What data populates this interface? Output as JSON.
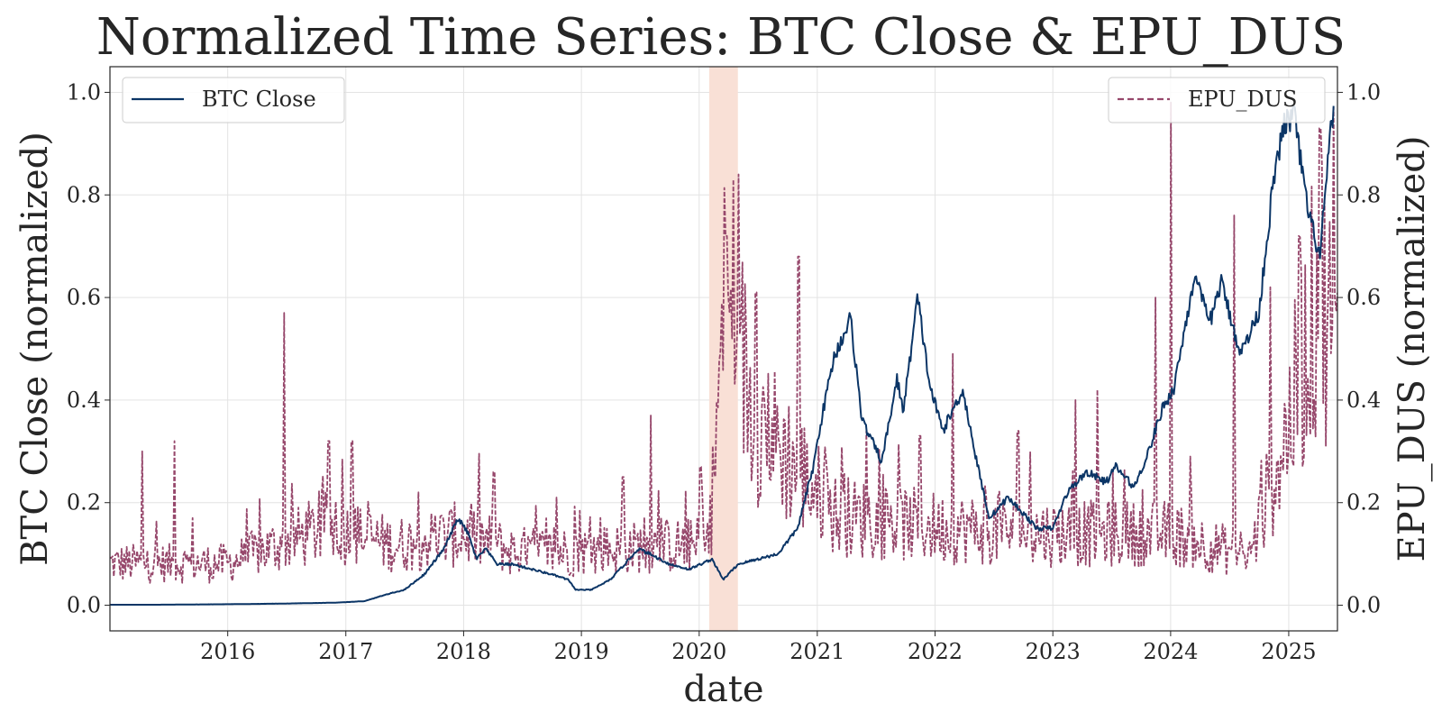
{
  "chart_data": {
    "type": "line",
    "title": "Normalized Time Series: BTC Close & EPU_DUS",
    "xlabel": "date",
    "ylabel_left": "BTC Close (normalized)",
    "ylabel_right": "EPU_DUS (normalized)",
    "x_ticks": [
      "2016",
      "2017",
      "2018",
      "2019",
      "2020",
      "2021",
      "2022",
      "2023",
      "2024",
      "2025"
    ],
    "xlim": [
      "2015-01-01",
      "2025-06-01"
    ],
    "ylim_left": [
      -0.05,
      1.05
    ],
    "ylim_right": [
      -0.05,
      1.05
    ],
    "y_ticks": [
      "0.0",
      "0.2",
      "0.4",
      "0.6",
      "0.8",
      "1.0"
    ],
    "grid": true,
    "shaded_region": {
      "start": "2020-02-01",
      "end": "2020-04-30",
      "color": "#f9e0d6"
    },
    "legend_left": {
      "position": "top-left",
      "entries": [
        "BTC Close"
      ]
    },
    "legend_right": {
      "position": "top-right",
      "entries": [
        "EPU_DUS"
      ]
    },
    "series": [
      {
        "name": "BTC Close",
        "axis": "left",
        "color": "#0b3566",
        "style": "solid",
        "points": [
          [
            "2015-01-01",
            0.001
          ],
          [
            "2015-06-01",
            0.001
          ],
          [
            "2016-01-01",
            0.002
          ],
          [
            "2016-06-01",
            0.003
          ],
          [
            "2016-12-01",
            0.005
          ],
          [
            "2017-03-01",
            0.008
          ],
          [
            "2017-05-01",
            0.02
          ],
          [
            "2017-07-01",
            0.03
          ],
          [
            "2017-09-01",
            0.06
          ],
          [
            "2017-11-01",
            0.11
          ],
          [
            "2017-12-15",
            0.17
          ],
          [
            "2018-01-15",
            0.14
          ],
          [
            "2018-02-10",
            0.09
          ],
          [
            "2018-03-10",
            0.11
          ],
          [
            "2018-04-15",
            0.08
          ],
          [
            "2018-06-01",
            0.08
          ],
          [
            "2018-08-01",
            0.07
          ],
          [
            "2018-10-01",
            0.06
          ],
          [
            "2018-11-20",
            0.05
          ],
          [
            "2018-12-15",
            0.03
          ],
          [
            "2019-02-01",
            0.03
          ],
          [
            "2019-04-01",
            0.05
          ],
          [
            "2019-05-15",
            0.08
          ],
          [
            "2019-06-26",
            0.11
          ],
          [
            "2019-08-01",
            0.1
          ],
          [
            "2019-10-01",
            0.08
          ],
          [
            "2019-12-01",
            0.07
          ],
          [
            "2020-02-10",
            0.09
          ],
          [
            "2020-03-15",
            0.05
          ],
          [
            "2020-05-01",
            0.08
          ],
          [
            "2020-07-01",
            0.09
          ],
          [
            "2020-09-01",
            0.1
          ],
          [
            "2020-11-01",
            0.15
          ],
          [
            "2020-12-20",
            0.27
          ],
          [
            "2021-01-10",
            0.35
          ],
          [
            "2021-02-20",
            0.48
          ],
          [
            "2021-04-14",
            0.56
          ],
          [
            "2021-05-20",
            0.36
          ],
          [
            "2021-07-20",
            0.28
          ],
          [
            "2021-09-05",
            0.44
          ],
          [
            "2021-09-25",
            0.38
          ],
          [
            "2021-11-08",
            0.6
          ],
          [
            "2021-12-15",
            0.43
          ],
          [
            "2022-01-25",
            0.34
          ],
          [
            "2022-03-28",
            0.42
          ],
          [
            "2022-05-10",
            0.28
          ],
          [
            "2022-06-18",
            0.17
          ],
          [
            "2022-08-15",
            0.21
          ],
          [
            "2022-10-15",
            0.17
          ],
          [
            "2022-11-10",
            0.15
          ],
          [
            "2023-01-01",
            0.15
          ],
          [
            "2023-02-15",
            0.22
          ],
          [
            "2023-04-15",
            0.26
          ],
          [
            "2023-06-15",
            0.24
          ],
          [
            "2023-07-15",
            0.27
          ],
          [
            "2023-09-10",
            0.23
          ],
          [
            "2023-10-25",
            0.3
          ],
          [
            "2023-12-10",
            0.39
          ],
          [
            "2024-01-10",
            0.42
          ],
          [
            "2024-03-14",
            0.64
          ],
          [
            "2024-05-01",
            0.55
          ],
          [
            "2024-06-05",
            0.63
          ],
          [
            "2024-08-05",
            0.49
          ],
          [
            "2024-09-30",
            0.57
          ],
          [
            "2024-11-12",
            0.81
          ],
          [
            "2024-12-17",
            0.94
          ],
          [
            "2025-01-20",
            0.95
          ],
          [
            "2025-02-28",
            0.77
          ],
          [
            "2025-04-08",
            0.68
          ],
          [
            "2025-05-01",
            0.85
          ],
          [
            "2025-05-22",
            0.99
          ]
        ]
      },
      {
        "name": "EPU_DUS",
        "axis": "right",
        "color": "#96476b",
        "style": "dashed",
        "baseline": [
          [
            "2015-01-01",
            0.07
          ],
          [
            "2016-01-01",
            0.07
          ],
          [
            "2016-11-01",
            0.13
          ],
          [
            "2017-06-01",
            0.1
          ],
          [
            "2018-01-01",
            0.12
          ],
          [
            "2018-06-01",
            0.09
          ],
          [
            "2019-01-01",
            0.09
          ],
          [
            "2019-09-01",
            0.1
          ],
          [
            "2020-02-01",
            0.1
          ],
          [
            "2020-03-20",
            0.5
          ],
          [
            "2020-05-01",
            0.45
          ],
          [
            "2020-06-15",
            0.32
          ],
          [
            "2020-10-01",
            0.25
          ],
          [
            "2021-03-01",
            0.15
          ],
          [
            "2022-01-01",
            0.13
          ],
          [
            "2023-01-01",
            0.12
          ],
          [
            "2024-01-01",
            0.12
          ],
          [
            "2024-09-01",
            0.08
          ],
          [
            "2025-01-01",
            0.3
          ],
          [
            "2025-04-10",
            0.55
          ],
          [
            "2025-06-01",
            0.4
          ]
        ],
        "spikes": [
          [
            "2015-04-10",
            0.3
          ],
          [
            "2015-07-20",
            0.32
          ],
          [
            "2015-09-15",
            0.17
          ],
          [
            "2016-06-24",
            0.57
          ],
          [
            "2016-11-09",
            0.32
          ],
          [
            "2017-01-20",
            0.32
          ],
          [
            "2017-08-15",
            0.22
          ],
          [
            "2018-04-05",
            0.26
          ],
          [
            "2018-10-15",
            0.21
          ],
          [
            "2019-05-10",
            0.25
          ],
          [
            "2019-08-05",
            0.37
          ],
          [
            "2020-01-05",
            0.27
          ],
          [
            "2020-03-25",
            0.72
          ],
          [
            "2020-04-15",
            0.83
          ],
          [
            "2020-05-01",
            0.84
          ],
          [
            "2020-06-25",
            0.61
          ],
          [
            "2020-11-04",
            0.68
          ],
          [
            "2021-06-01",
            0.34
          ],
          [
            "2021-11-15",
            0.33
          ],
          [
            "2022-02-25",
            0.49
          ],
          [
            "2022-09-15",
            0.34
          ],
          [
            "2023-03-13",
            0.4
          ],
          [
            "2023-05-20",
            0.42
          ],
          [
            "2023-11-15",
            0.6
          ],
          [
            "2024-01-03",
            0.98
          ],
          [
            "2024-07-15",
            0.76
          ],
          [
            "2024-11-06",
            0.62
          ],
          [
            "2025-02-01",
            0.72
          ],
          [
            "2025-04-08",
            0.93
          ],
          [
            "2025-05-20",
            0.97
          ]
        ]
      }
    ]
  }
}
